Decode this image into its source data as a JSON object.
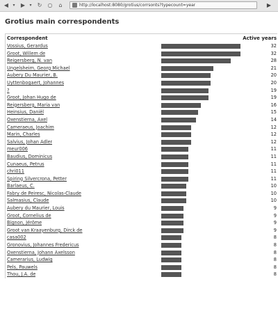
{
  "browser": {
    "url": "http://localhost:8080/grotius/corrsonts?typecount=year",
    "buttons": {
      "back": "◀",
      "back_menu": "▾",
      "forward": "▶",
      "forward_menu": "▾",
      "reload": "↻",
      "stop": "○",
      "home": "⌂",
      "go": "▶"
    }
  },
  "page": {
    "title": "Grotius main correspondents",
    "columns": {
      "correspondent": "Correspondent",
      "years": "Active years"
    },
    "max_years": 32,
    "rows": [
      {
        "name": "Vossius, Gerardus",
        "years": 32
      },
      {
        "name": "Groot, Willem de",
        "years": 32
      },
      {
        "name": "Reigersberg, N. van",
        "years": 28
      },
      {
        "name": "Ungelsheim, Georg Michael",
        "years": 21
      },
      {
        "name": "Aubery Du Maurier, B.",
        "years": 20
      },
      {
        "name": "Uyttenbogaert, Johannes",
        "years": 20
      },
      {
        "name": "?",
        "years": 19
      },
      {
        "name": "Groot, Johan Hugo de",
        "years": 19
      },
      {
        "name": "Reigersberg, Maria van",
        "years": 16
      },
      {
        "name": "Heinsius, Daniël",
        "years": 15
      },
      {
        "name": "Oxenstierna, Axel",
        "years": 14
      },
      {
        "name": "Cameraeus, Joachim",
        "years": 12
      },
      {
        "name": "Marin, Charles",
        "years": 12
      },
      {
        "name": "Salvius, Johan Adler",
        "years": 12
      },
      {
        "name": "meur006",
        "years": 11
      },
      {
        "name": "Baudius, Dominicus",
        "years": 11
      },
      {
        "name": "Cunaeus, Petrus",
        "years": 11
      },
      {
        "name": "chri011",
        "years": 11
      },
      {
        "name": "Spiring Silvercrona, Petter",
        "years": 11
      },
      {
        "name": "Barlaeus, C.",
        "years": 10
      },
      {
        "name": "Fabry de Peiresc, Nicolas-Claude",
        "years": 10
      },
      {
        "name": "Salmasius, Claude",
        "years": 10
      },
      {
        "name": "Aubery du Maurier, Louis",
        "years": 9
      },
      {
        "name": "Groot, Cornelius de",
        "years": 9
      },
      {
        "name": "Bignon, Jérôme",
        "years": 9
      },
      {
        "name": "Groot van Kraayenburg, Dirck de",
        "years": 9
      },
      {
        "name": "casa002",
        "years": 8
      },
      {
        "name": "Gronovius, Johannes Fredericus",
        "years": 8
      },
      {
        "name": "Oxenstierna, Johann Axelsson",
        "years": 8
      },
      {
        "name": "Camerarius, Ludwig",
        "years": 8
      },
      {
        "name": "Pels, Pauwels",
        "years": 8
      },
      {
        "name": "Thou, J.A. de",
        "years": 8
      }
    ]
  },
  "colors": {
    "bar": "#555555",
    "link": "#333333"
  }
}
